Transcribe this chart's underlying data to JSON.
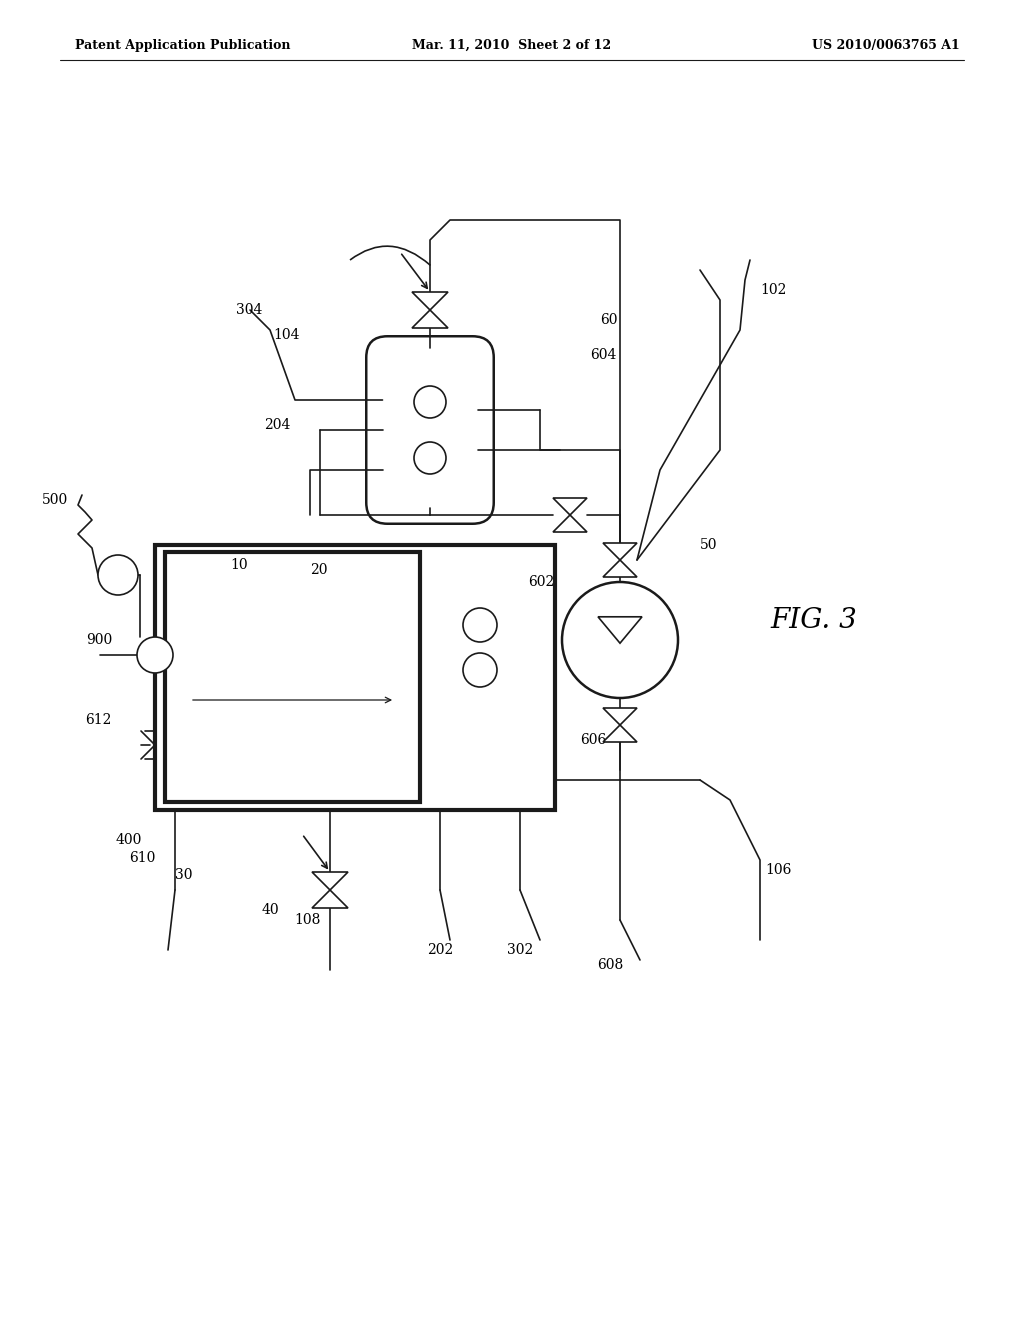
{
  "header_left": "Patent Application Publication",
  "header_mid": "Mar. 11, 2010  Sheet 2 of 12",
  "header_right": "US 2010/0063765 A1",
  "fig_label": "FIG. 3",
  "bg_color": "#ffffff",
  "line_color": "#1a1a1a"
}
